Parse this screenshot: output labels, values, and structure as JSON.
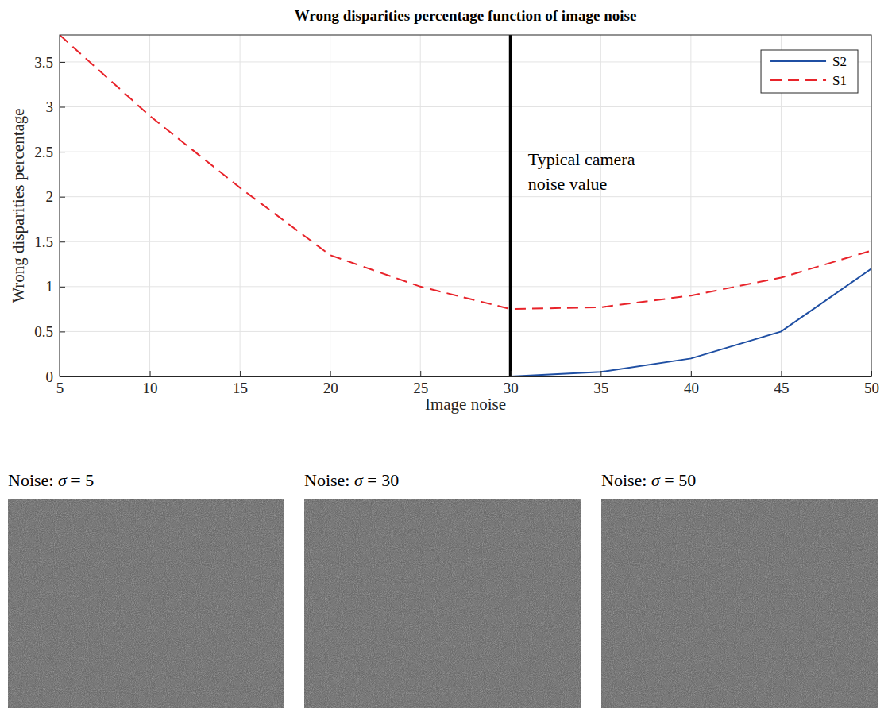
{
  "chart_data": {
    "type": "line",
    "title": "Wrong disparities percentage function of image noise",
    "x_label": "Image noise",
    "y_label": "Wrong disparities percentage",
    "x": [
      5,
      10,
      15,
      20,
      25,
      30,
      35,
      40,
      45,
      50
    ],
    "series": [
      {
        "name": "S2",
        "color": "#1f4fa3",
        "line_style": "solid",
        "values": [
          0,
          0,
          0,
          0,
          0,
          0,
          0.05,
          0.2,
          0.5,
          1.2
        ]
      },
      {
        "name": "S1",
        "color": "#e8232a",
        "line_style": "dashed",
        "values": [
          3.8,
          2.9,
          2.1,
          1.35,
          1.0,
          0.75,
          0.77,
          0.9,
          1.1,
          1.4
        ]
      }
    ],
    "xlim": [
      5,
      50
    ],
    "xticks": [
      5,
      10,
      15,
      20,
      25,
      30,
      35,
      40,
      45,
      50
    ],
    "ylim": [
      0,
      3.8
    ],
    "yticks": [
      0,
      0.5,
      1,
      1.5,
      2,
      2.5,
      3,
      3.5
    ],
    "grid": true,
    "legend": "top-right",
    "annotations": [
      {
        "x": 30,
        "label": [
          "Typical camera",
          "noise value"
        ]
      }
    ],
    "images": [
      {
        "label": "Noise: σ = 5"
      },
      {
        "label": "Noise: σ = 30"
      },
      {
        "label": "Noise: σ = 50"
      }
    ]
  }
}
